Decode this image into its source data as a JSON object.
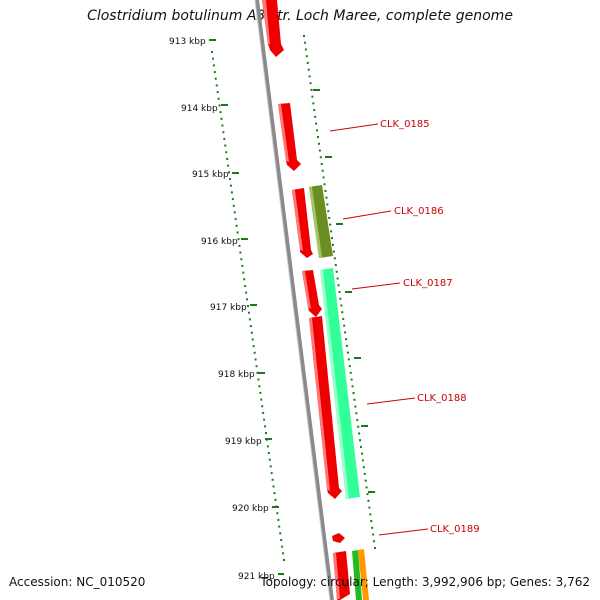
{
  "title": "Clostridium botulinum A3 str. Loch Maree, complete genome",
  "footer": {
    "accession": "Accession: NC_010520",
    "summary": "Topology: circular; Length: 3,992,906 bp; Genes: 3,762"
  },
  "ruler_labels": [
    "913 kbp",
    "914 kbp",
    "915 kbp",
    "916 kbp",
    "917 kbp",
    "918 kbp",
    "919 kbp",
    "920 kbp",
    "921 kbp"
  ],
  "gene_labels": [
    "CLK_0185",
    "CLK_0186",
    "CLK_0187",
    "CLK_0188",
    "CLK_0189"
  ],
  "colors": {
    "cds": "#ee0000",
    "olive": "#6b8e23",
    "aqua": "#33ff99",
    "orange": "#ff9900",
    "green": "#22bb22",
    "ruler": "#1a7a1a",
    "backbone": "#888888",
    "label": "#cc0000"
  }
}
